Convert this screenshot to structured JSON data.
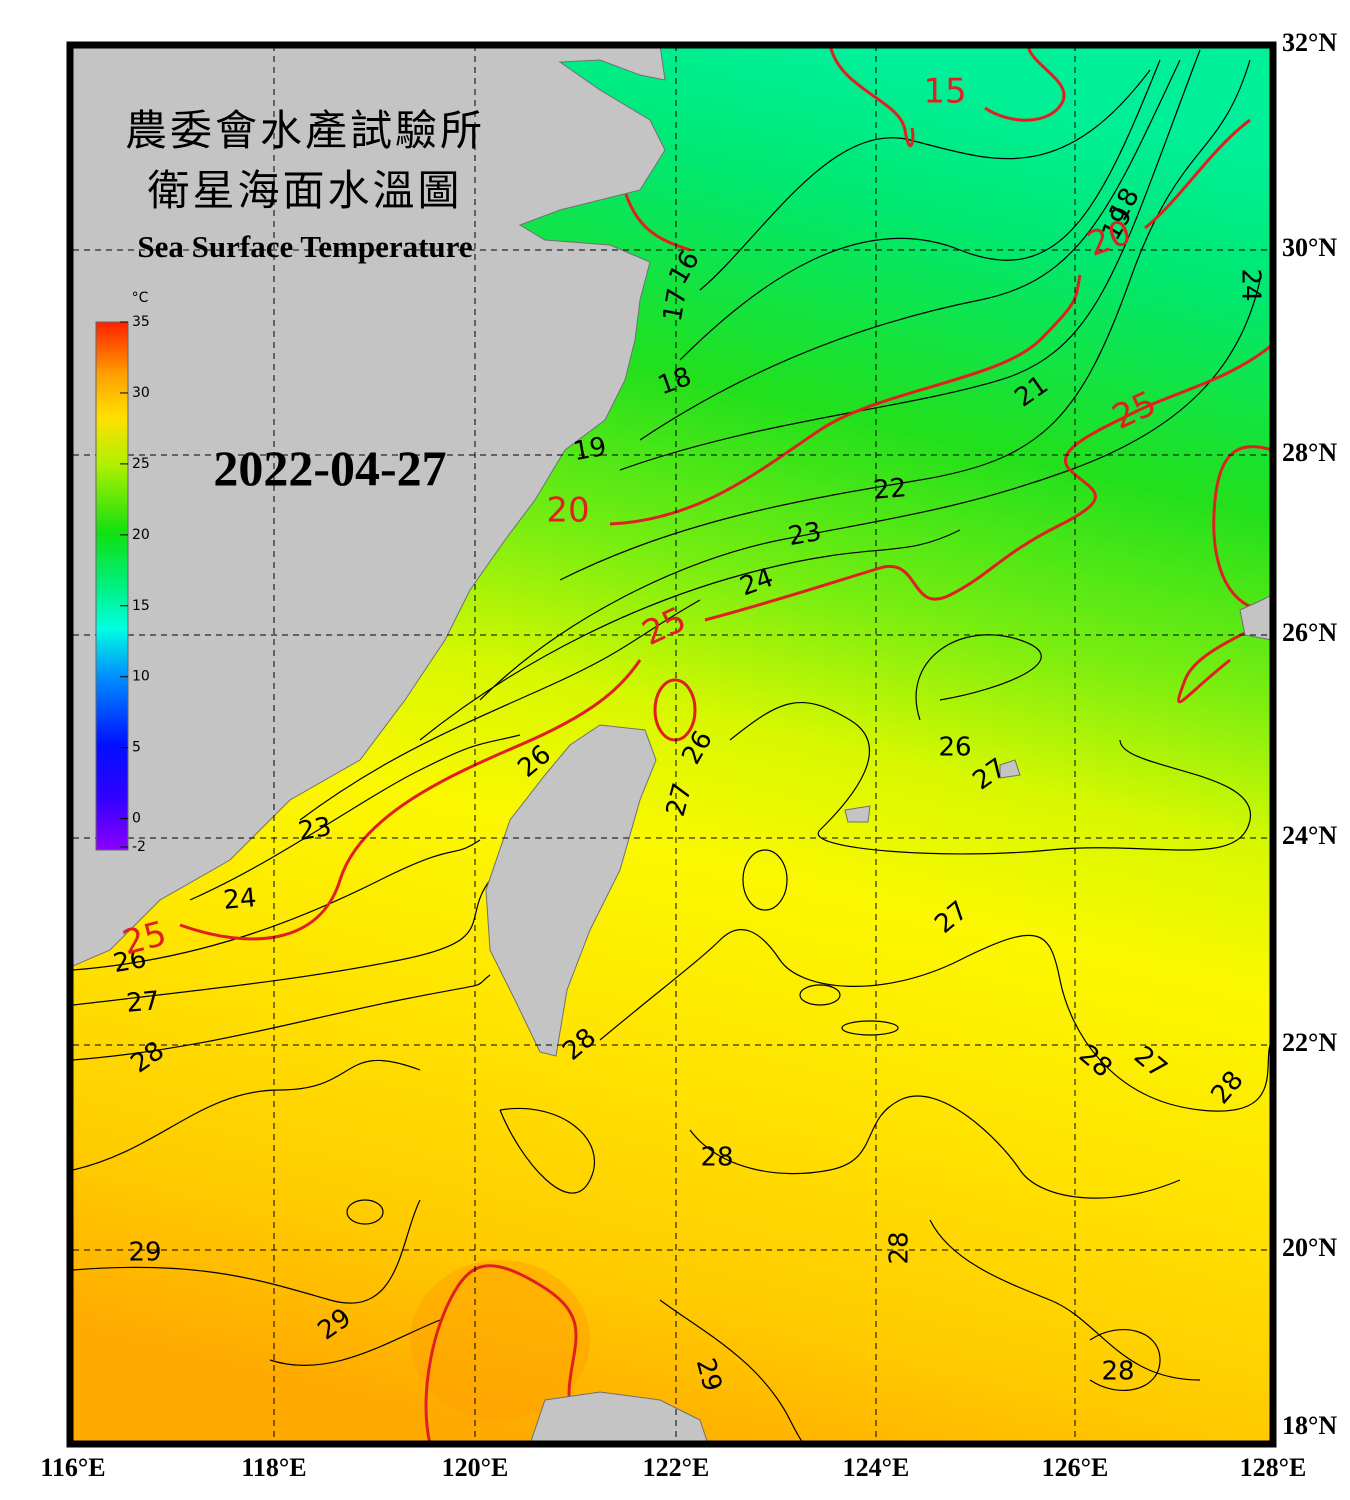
{
  "header": {
    "title_zh_1": "農委會水產試驗所",
    "title_zh_2": "衛星海面水溫圖",
    "title_en": "Sea Surface Temperature"
  },
  "date": "2022-04-27",
  "colorbar": {
    "unit": "°C",
    "range": [
      -2,
      35
    ],
    "ticks": [
      35,
      30,
      25,
      20,
      15,
      10,
      5,
      0,
      -2
    ]
  },
  "longitude_labels": [
    "116°E",
    "118°E",
    "120°E",
    "122°E",
    "124°E",
    "126°E",
    "128°E"
  ],
  "latitude_labels": [
    "18°N",
    "20°N",
    "22°N",
    "24°N",
    "26°N",
    "28°N",
    "30°N",
    "32°N"
  ],
  "contour_labels": [
    {
      "text": "15",
      "color": "#e02020"
    },
    {
      "text": "18",
      "color": "#000000"
    },
    {
      "text": "19",
      "color": "#000000"
    },
    {
      "text": "20",
      "color": "#e02020"
    },
    {
      "text": "24",
      "color": "#000000"
    },
    {
      "text": "16",
      "color": "#000000"
    },
    {
      "text": "17",
      "color": "#000000"
    },
    {
      "text": "18",
      "color": "#000000"
    },
    {
      "text": "21",
      "color": "#000000"
    },
    {
      "text": "25",
      "color": "#e02020"
    },
    {
      "text": "19",
      "color": "#000000"
    },
    {
      "text": "22",
      "color": "#000000"
    },
    {
      "text": "20",
      "color": "#e02020"
    },
    {
      "text": "23",
      "color": "#000000"
    },
    {
      "text": "24",
      "color": "#000000"
    },
    {
      "text": "25",
      "color": "#e02020"
    },
    {
      "text": "26",
      "color": "#000000"
    },
    {
      "text": "27",
      "color": "#000000"
    },
    {
      "text": "26",
      "color": "#000000"
    },
    {
      "text": "26",
      "color": "#000000"
    },
    {
      "text": "27",
      "color": "#000000"
    },
    {
      "text": "23",
      "color": "#000000"
    },
    {
      "text": "24",
      "color": "#000000"
    },
    {
      "text": "27",
      "color": "#000000"
    },
    {
      "text": "26",
      "color": "#000000"
    },
    {
      "text": "25",
      "color": "#e02020"
    },
    {
      "text": "27",
      "color": "#000000"
    },
    {
      "text": "28",
      "color": "#000000"
    },
    {
      "text": "28",
      "color": "#000000"
    },
    {
      "text": "28",
      "color": "#000000"
    },
    {
      "text": "27",
      "color": "#000000"
    },
    {
      "text": "28",
      "color": "#000000"
    },
    {
      "text": "28",
      "color": "#000000"
    },
    {
      "text": "28",
      "color": "#000000"
    },
    {
      "text": "29",
      "color": "#000000"
    },
    {
      "text": "29",
      "color": "#000000"
    },
    {
      "text": "29",
      "color": "#000000"
    },
    {
      "text": "28",
      "color": "#000000"
    }
  ]
}
